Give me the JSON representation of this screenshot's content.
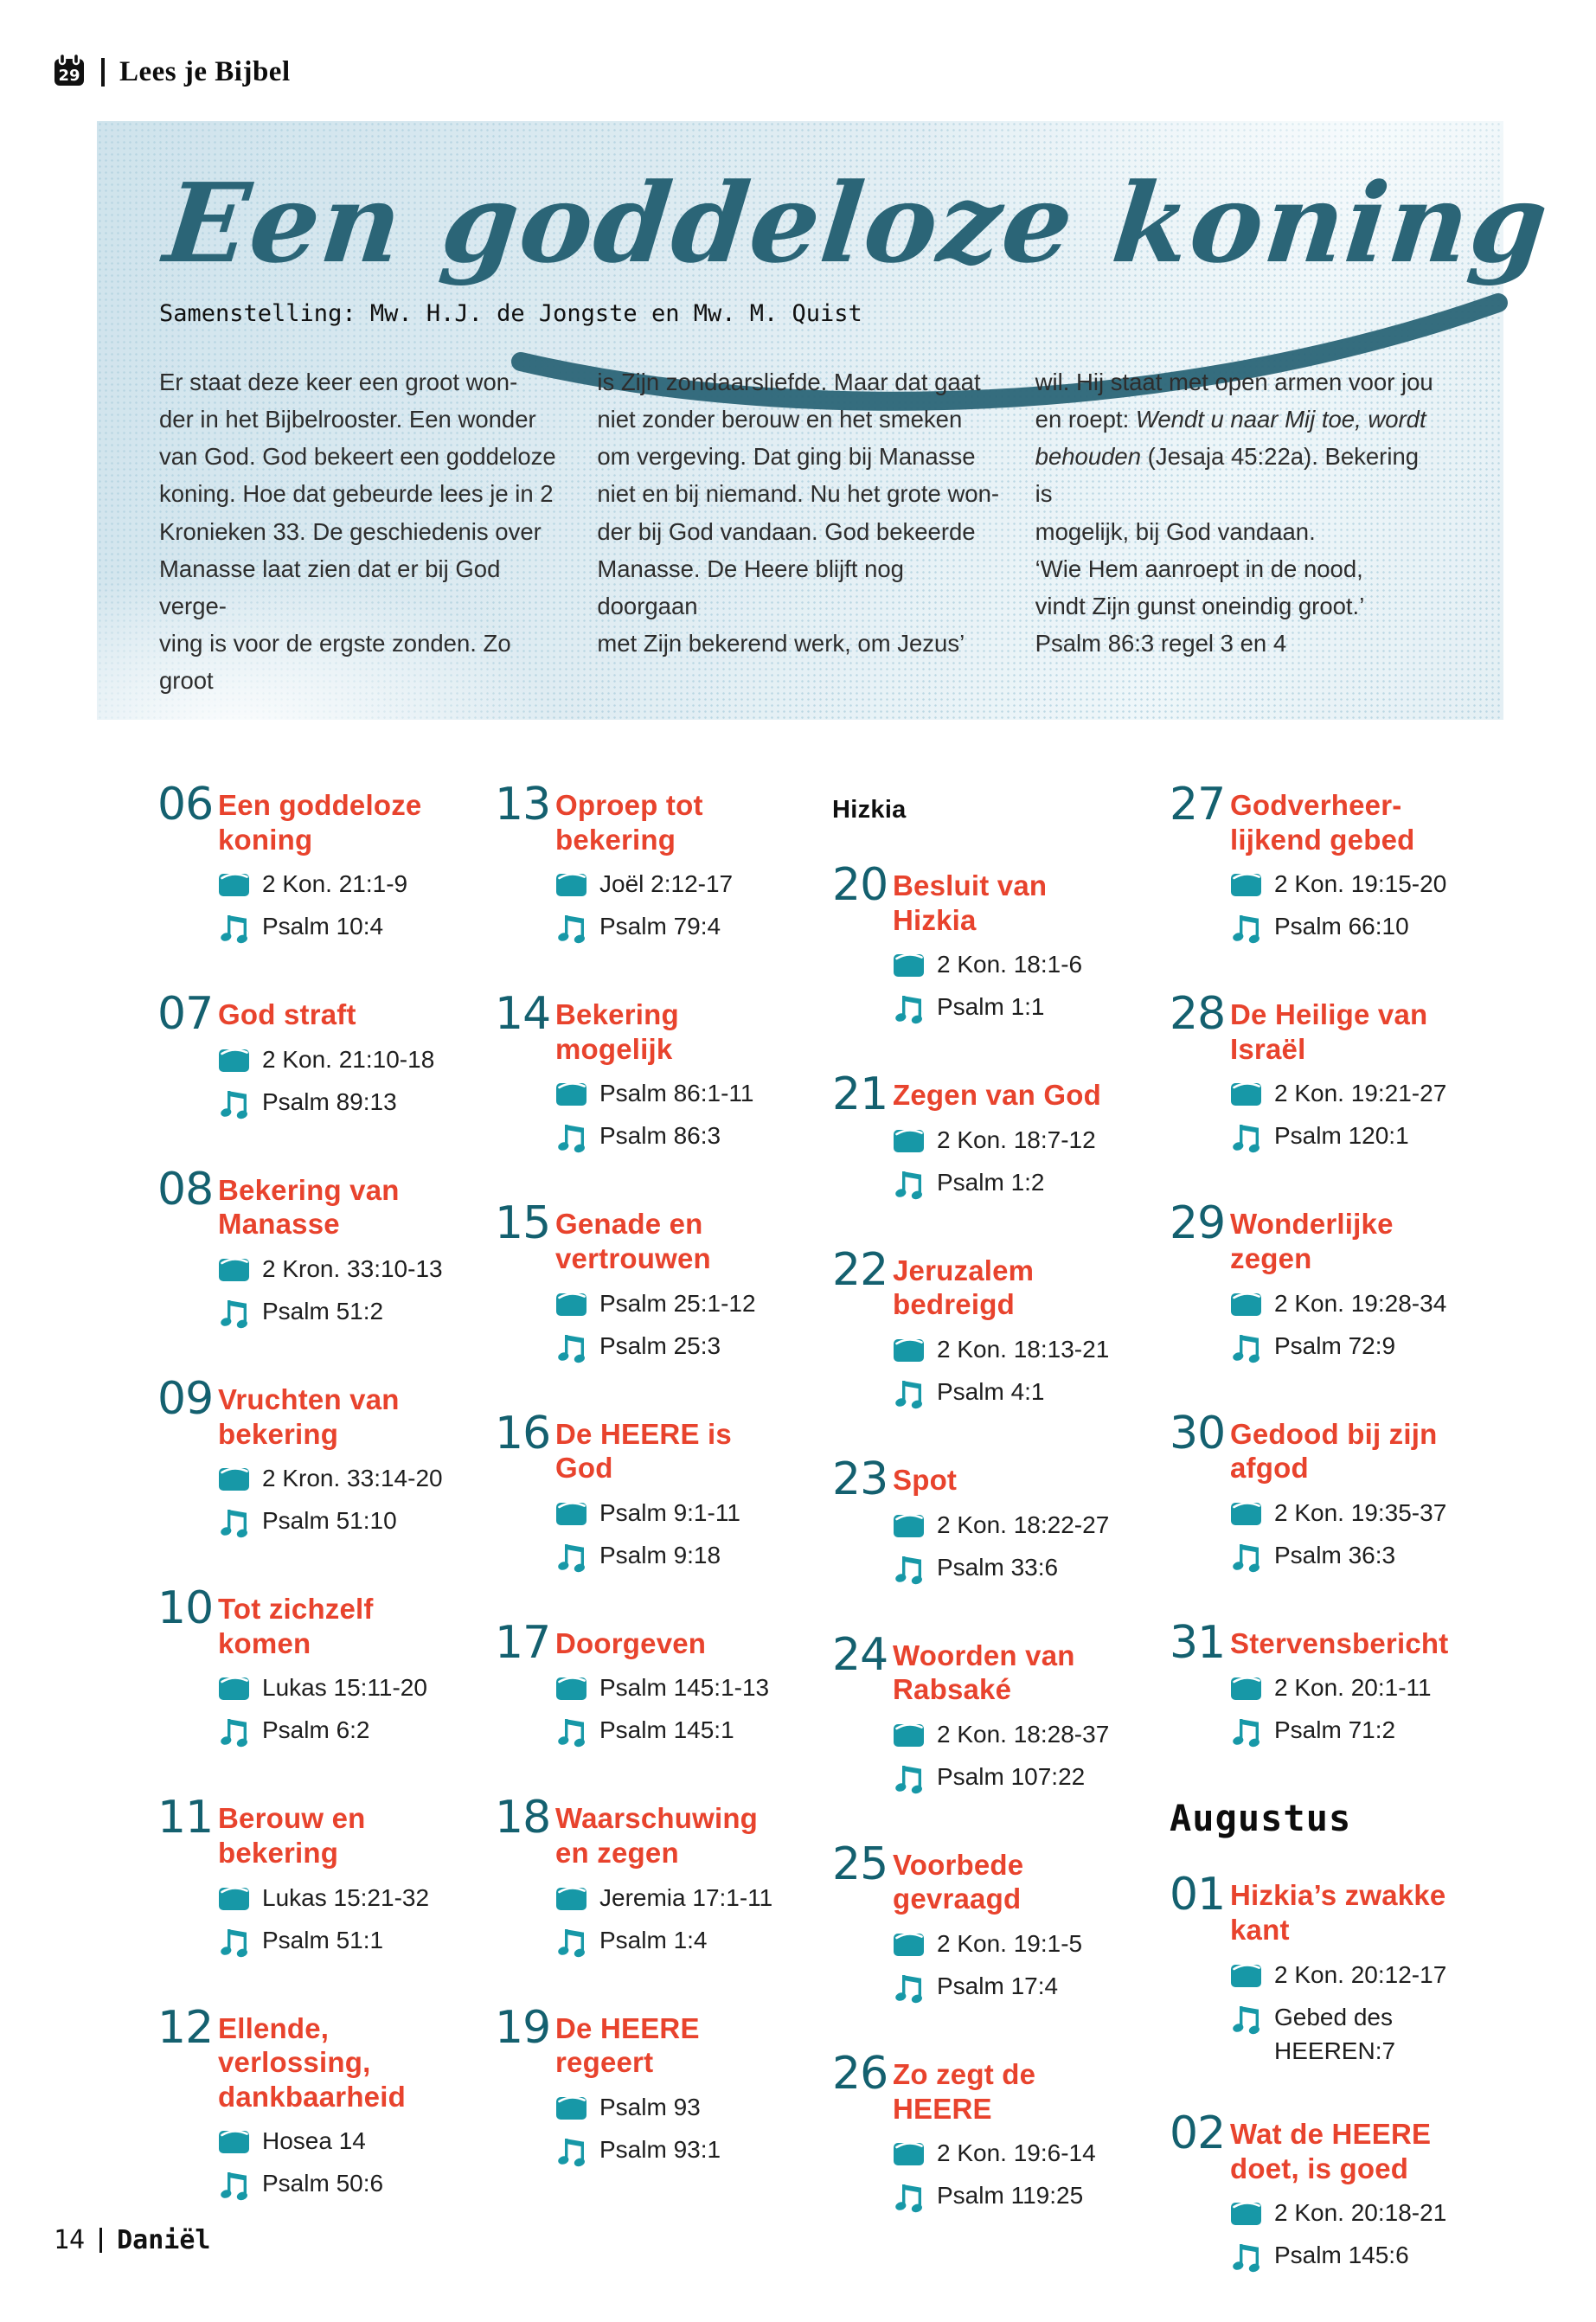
{
  "header": {
    "brand": "Lees je Bijbel",
    "calendar_day": "29"
  },
  "hero": {
    "title": "Een goddeloze koning",
    "byline": "Samenstelling: Mw. H.J. de Jongste en Mw. M. Quist",
    "intro": {
      "col1": "Er staat deze keer een groot won-\nder in het Bijbelrooster. Een wonder\nvan God. God bekeert een goddeloze\nkoning. Hoe dat gebeurde lees je in 2\nKronieken 33. De geschiedenis over\nManasse laat zien dat er bij God verge-\nving is voor de ergste zonden. Zo groot",
      "col2": "is Zijn zondaarsliefde. Maar dat gaat\nniet zonder berouw en het smeken\nom vergeving. Dat ging bij Manasse\nniet en bij niemand. Nu het grote won-\nder bij God vandaan. God bekeerde\nManasse. De Heere blijft nog doorgaan\nmet Zijn bekerend werk, om Jezus’",
      "col3_pre": "wil. Hij staat met open armen voor jou\nen roept: ",
      "col3_italic": "Wendt u naar Mij toe, wordt\nbehouden",
      "col3_post": " (Jesaja 45:22a). Bekering is\nmogelijk, bij God vandaan.\n‘Wie Hem aanroept in de nood,\nvindt Zijn gunst oneindig groot.’\nPsalm 86:3 regel 3 en 4"
    }
  },
  "icons": {
    "header": "calendar-29-icon",
    "read": "book-icon",
    "sing": "music-note-icon"
  },
  "colors": {
    "accent_red": "#e8432d",
    "number_teal": "#14606f",
    "icon_teal": "#1798a7",
    "title_teal": "#2b6577",
    "hero_background": "#dcebf1"
  },
  "schedule": {
    "columns": [
      {
        "items": [
          {
            "type": "day",
            "num": "06",
            "title": "Een goddeloze\nkoning",
            "read": "2 Kon. 21:1-9",
            "sing": "Psalm 10:4"
          },
          {
            "type": "day",
            "num": "07",
            "title": "God straft",
            "read": "2 Kon. 21:10-18",
            "sing": "Psalm 89:13"
          },
          {
            "type": "day",
            "num": "08",
            "title": "Bekering van\nManasse",
            "read": "2 Kron. 33:10-13",
            "sing": "Psalm 51:2"
          },
          {
            "type": "day",
            "num": "09",
            "title": "Vruchten van\nbekering",
            "read": "2 Kron. 33:14-20",
            "sing": "Psalm 51:10"
          },
          {
            "type": "day",
            "num": "10",
            "title": "Tot zichzelf\nkomen",
            "read": "Lukas 15:11-20",
            "sing": "Psalm 6:2"
          },
          {
            "type": "day",
            "num": "11",
            "title": "Berouw en\nbekering",
            "read": "Lukas 15:21-32",
            "sing": "Psalm 51:1"
          },
          {
            "type": "day",
            "num": "12",
            "title": "Ellende,\nverlossing,\ndankbaarheid",
            "read": "Hosea 14",
            "sing": "Psalm 50:6"
          }
        ]
      },
      {
        "items": [
          {
            "type": "day",
            "num": "13",
            "title": "Oproep tot\nbekering",
            "read": "Joël 2:12-17",
            "sing": "Psalm 79:4"
          },
          {
            "type": "day",
            "num": "14",
            "title": "Bekering\nmogelijk",
            "read": "Psalm 86:1-11",
            "sing": "Psalm 86:3"
          },
          {
            "type": "day",
            "num": "15",
            "title": "Genade en\nvertrouwen",
            "read": "Psalm 25:1-12",
            "sing": "Psalm 25:3"
          },
          {
            "type": "day",
            "num": "16",
            "title": "De HEERE is God",
            "read": "Psalm 9:1-11",
            "sing": "Psalm 9:18"
          },
          {
            "type": "day",
            "num": "17",
            "title": "Doorgeven",
            "read": "Psalm 145:1-13",
            "sing": "Psalm 145:1"
          },
          {
            "type": "day",
            "num": "18",
            "title": "Waarschuwing\nen zegen",
            "read": "Jeremia 17:1-11",
            "sing": "Psalm 1:4"
          },
          {
            "type": "day",
            "num": "19",
            "title": "De HEERE\nregeert",
            "read": "Psalm 93",
            "sing": "Psalm 93:1"
          }
        ]
      },
      {
        "items": [
          {
            "type": "section",
            "id": "hizkia",
            "text": "Hizkia"
          },
          {
            "type": "day",
            "num": "20",
            "title": "Besluit van\nHizkia",
            "read": "2 Kon. 18:1-6",
            "sing": "Psalm 1:1"
          },
          {
            "type": "day",
            "num": "21",
            "title": "Zegen van God",
            "read": "2 Kon. 18:7-12",
            "sing": "Psalm 1:2"
          },
          {
            "type": "day",
            "num": "22",
            "title": "Jeruzalem\nbedreigd",
            "read": "2 Kon. 18:13-21",
            "sing": "Psalm 4:1"
          },
          {
            "type": "day",
            "num": "23",
            "title": "Spot",
            "read": "2 Kon. 18:22-27",
            "sing": "Psalm 33:6"
          },
          {
            "type": "day",
            "num": "24",
            "title": "Woorden van\nRabsaké",
            "read": "2 Kon. 18:28-37",
            "sing": "Psalm 107:22"
          },
          {
            "type": "day",
            "num": "25",
            "title": "Voorbede\ngevraagd",
            "read": "2 Kon. 19:1-5",
            "sing": "Psalm 17:4"
          },
          {
            "type": "day",
            "num": "26",
            "title": "Zo zegt de\nHEERE",
            "read": "2 Kon. 19:6-14",
            "sing": "Psalm 119:25"
          }
        ]
      },
      {
        "items": [
          {
            "type": "day",
            "num": "27",
            "title": "Godverheer-\nlijkend gebed",
            "read": "2 Kon. 19:15-20",
            "sing": "Psalm 66:10"
          },
          {
            "type": "day",
            "num": "28",
            "title": "De Heilige van\nIsraël",
            "read": "2 Kon. 19:21-27",
            "sing": "Psalm 120:1"
          },
          {
            "type": "day",
            "num": "29",
            "title": "Wonderlijke\nzegen",
            "read": "2 Kon. 19:28-34",
            "sing": "Psalm 72:9"
          },
          {
            "type": "day",
            "num": "30",
            "title": "Gedood bij zijn\nafgod",
            "read": "2 Kon. 19:35-37",
            "sing": "Psalm 36:3"
          },
          {
            "type": "day",
            "num": "31",
            "title": "Stervensbericht",
            "read": "2 Kon. 20:1-11",
            "sing": "Psalm 71:2"
          },
          {
            "type": "month",
            "id": "augustus",
            "text": "Augustus"
          },
          {
            "type": "day",
            "num": "01",
            "title": "Hizkia’s zwakke\nkant",
            "read": "2 Kon. 20:12-17",
            "sing": "Gebed des\nHEEREN:7"
          },
          {
            "type": "day",
            "num": "02",
            "title": "Wat de HEERE\ndoet, is goed",
            "read": "2 Kon. 20:18-21",
            "sing": "Psalm 145:6"
          }
        ]
      }
    ]
  },
  "footer": {
    "page_number": "14",
    "book": "Daniël"
  }
}
